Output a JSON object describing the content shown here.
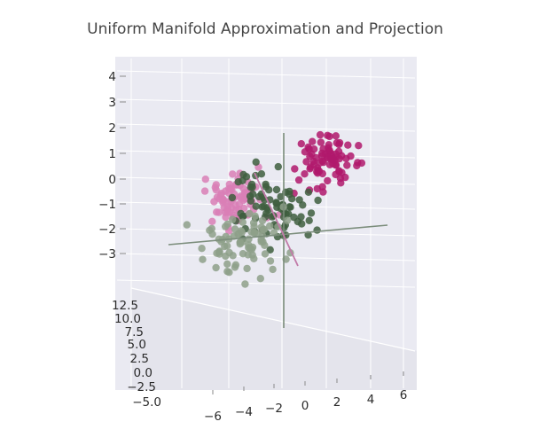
{
  "chart_data": {
    "type": "scatter",
    "projection": "3d",
    "title": "Uniform Manifold Approximation and Projection",
    "xlabel": "",
    "ylabel": "",
    "zlabel": "",
    "xlim": [
      -7,
      7
    ],
    "ylim": [
      -6,
      14
    ],
    "zlim": [
      -5,
      5
    ],
    "x_ticks": [
      "−6",
      "−4",
      "−2",
      "0",
      "2",
      "4",
      "6"
    ],
    "y_ticks": [
      "−5.0",
      "−2.5",
      "0.0",
      "2.5",
      "5.0",
      "7.5",
      "10.0",
      "12.5"
    ],
    "z_ticks": [
      "−3",
      "−2",
      "−1",
      "0",
      "1",
      "2",
      "3",
      "4"
    ],
    "grid": true,
    "legend": "none",
    "colors": {
      "pane": "#eaeaf2",
      "grid": "#ffffff",
      "magenta": "#b0196c",
      "pink": "#d97fb6",
      "dark_green": "#3e5e3e",
      "gray_green": "#8ea08a",
      "axis_line_gray": "#7b8d7b",
      "axis_line_pink": "#c27aa8"
    },
    "series_count": 4,
    "points_per_series": 80
  }
}
